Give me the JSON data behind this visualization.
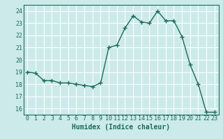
{
  "x": [
    0,
    1,
    2,
    3,
    4,
    5,
    6,
    7,
    8,
    9,
    10,
    11,
    12,
    13,
    14,
    15,
    16,
    17,
    18,
    19,
    20,
    21,
    22,
    23
  ],
  "y": [
    19.0,
    18.9,
    18.3,
    18.3,
    18.1,
    18.1,
    18.0,
    17.9,
    17.8,
    18.1,
    21.0,
    21.2,
    22.6,
    23.6,
    23.1,
    23.0,
    24.0,
    23.2,
    23.2,
    21.9,
    19.6,
    18.0,
    15.7,
    15.7
  ],
  "line_color": "#1a6b5a",
  "marker": "+",
  "marker_size": 4,
  "bg_color": "#cceaea",
  "grid_color": "#ffffff",
  "xlabel": "Humidex (Indice chaleur)",
  "xlabel_color": "#1a6b5a",
  "tick_color": "#1a6b5a",
  "ylim": [
    15.5,
    24.5
  ],
  "xlim": [
    -0.5,
    23.5
  ],
  "yticks": [
    16,
    17,
    18,
    19,
    20,
    21,
    22,
    23,
    24
  ],
  "xticks": [
    0,
    1,
    2,
    3,
    4,
    5,
    6,
    7,
    8,
    9,
    10,
    11,
    12,
    13,
    14,
    15,
    16,
    17,
    18,
    19,
    20,
    21,
    22,
    23
  ],
  "tick_fontsize": 6,
  "xlabel_fontsize": 7,
  "linewidth": 1.0,
  "spine_color": "#1a6b5a"
}
